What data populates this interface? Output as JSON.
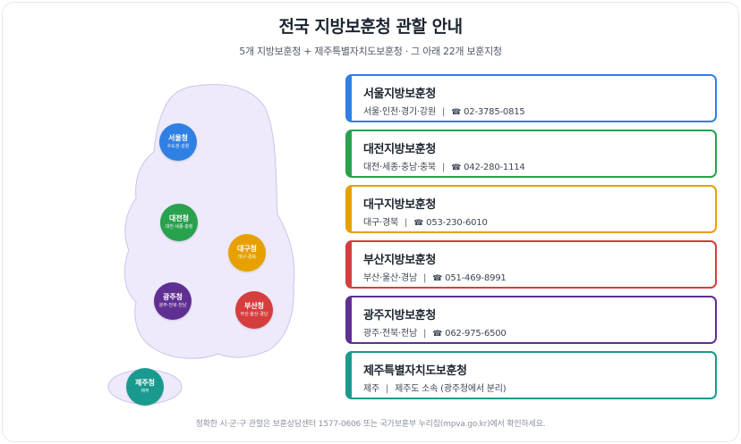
{
  "header": {
    "title": "전국 지방보훈청 관할 안내",
    "subtitle": "5개 지방보훈청 + 제주특별자치도보훈청 · 그 아래 22개 보훈지청"
  },
  "map": {
    "nodes": [
      {
        "key": "seoul",
        "name": "서울청",
        "sub": "수도권·강원",
        "color": "#2f80e3"
      },
      {
        "key": "daejeon",
        "name": "대전청",
        "sub": "대전·세종·충청",
        "color": "#2aa14d"
      },
      {
        "key": "daegu",
        "name": "대구청",
        "sub": "대구·경북",
        "color": "#e6a100"
      },
      {
        "key": "gwangju",
        "name": "광주청",
        "sub": "광주·전북·전남",
        "color": "#5f2f92"
      },
      {
        "key": "busan",
        "name": "부산청",
        "sub": "부산·울산·경남",
        "color": "#d63d3d"
      },
      {
        "key": "jeju",
        "name": "제주청",
        "sub": "제주",
        "color": "#1a9a8e"
      }
    ]
  },
  "offices": [
    {
      "name": "서울지방보훈청",
      "region": "서울·인천·경기·강원",
      "phone_icon": "☎",
      "phone": "02-3785-0815",
      "color": "#2f80e3"
    },
    {
      "name": "대전지방보훈청",
      "region": "대전·세종·충남·충북",
      "phone_icon": "☎",
      "phone": "042-280-1114",
      "color": "#2aa14d"
    },
    {
      "name": "대구지방보훈청",
      "region": "대구·경북",
      "phone_icon": "☎",
      "phone": "053-230-6010",
      "color": "#e6a100"
    },
    {
      "name": "부산지방보훈청",
      "region": "부산·울산·경남",
      "phone_icon": "☎",
      "phone": "051-469-8991",
      "color": "#d63d3d"
    },
    {
      "name": "광주지방보훈청",
      "region": "광주·전북·전남",
      "phone_icon": "☎",
      "phone": "062-975-6500",
      "color": "#5f2f92"
    },
    {
      "name": "제주특별자치도보훈청",
      "region": "제주",
      "note": "제주도 소속 (광주청에서 분리)",
      "color": "#1a9a8e"
    }
  ],
  "separator": "|",
  "footer": {
    "note": "정확한 시·군·구 관할은 보훈상담센터 1577-0606 또는 국가보훈부 누리집(mpva.go.kr)에서 확인하세요."
  }
}
